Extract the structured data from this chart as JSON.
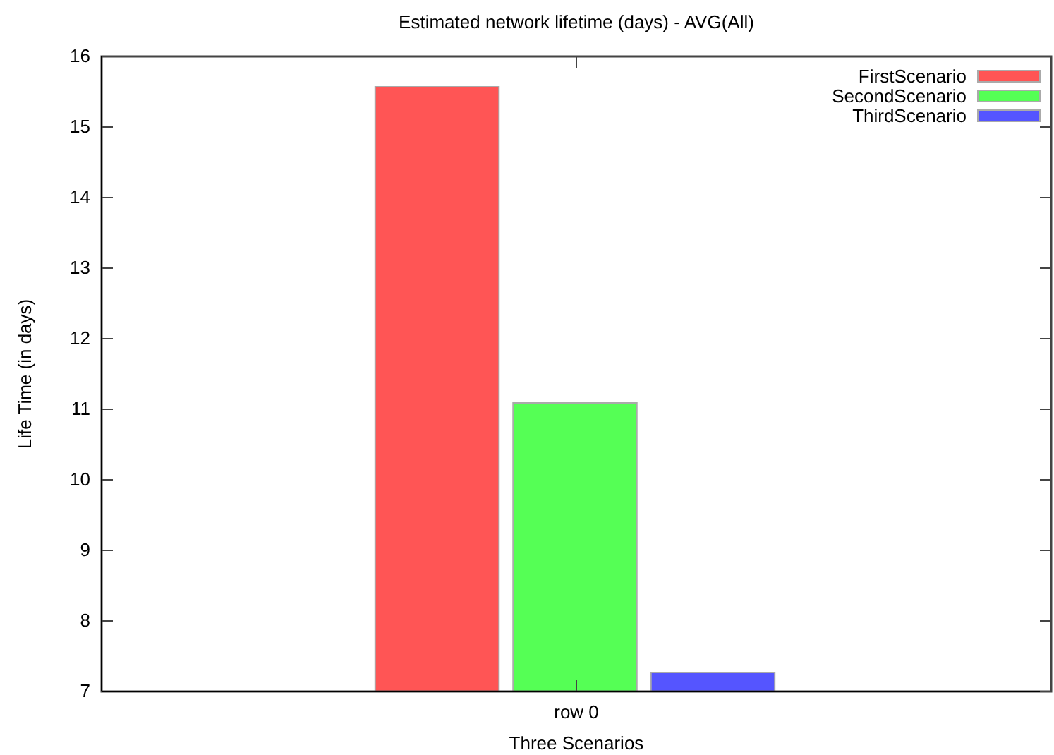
{
  "chart_data": {
    "type": "bar",
    "title": "Estimated network lifetime (days) - AVG(All)",
    "xlabel": "Three Scenarios",
    "ylabel": "Life Time (in days)",
    "categories": [
      "row 0"
    ],
    "series": [
      {
        "name": "FirstScenario",
        "color": "#ff5555",
        "values": [
          15.57
        ]
      },
      {
        "name": "SecondScenario",
        "color": "#55ff55",
        "values": [
          11.09
        ]
      },
      {
        "name": "ThirdScenario",
        "color": "#5555ff",
        "values": [
          7.27
        ]
      }
    ],
    "ylim": [
      7,
      16
    ],
    "yticks": [
      7,
      8,
      9,
      10,
      11,
      12,
      13,
      14,
      15,
      16
    ],
    "grid": false,
    "legend": "top right"
  }
}
